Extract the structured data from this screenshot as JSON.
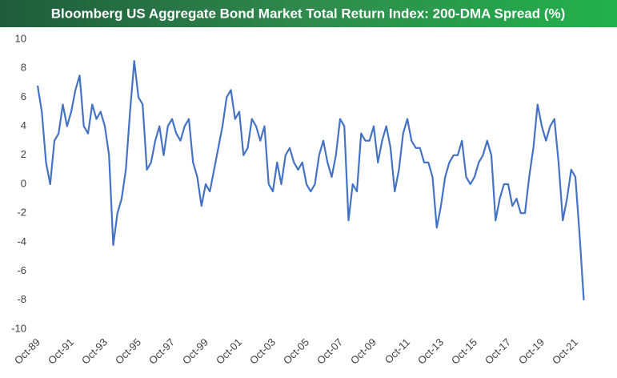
{
  "chart_data": {
    "type": "line",
    "title": "Bloomberg US Aggregate Bond Market Total Return Index: 200-DMA Spread (%)",
    "categories": [
      "Oct-89",
      null,
      null,
      null,
      null,
      null,
      null,
      null,
      "Oct-91",
      null,
      null,
      null,
      null,
      null,
      null,
      null,
      "Oct-93",
      null,
      null,
      null,
      null,
      null,
      null,
      null,
      "Oct-95",
      null,
      null,
      null,
      null,
      null,
      null,
      null,
      "Oct-97",
      null,
      null,
      null,
      null,
      null,
      null,
      null,
      "Oct-99",
      null,
      null,
      null,
      null,
      null,
      null,
      null,
      "Oct-01",
      null,
      null,
      null,
      null,
      null,
      null,
      null,
      "Oct-03",
      null,
      null,
      null,
      null,
      null,
      null,
      null,
      "Oct-05",
      null,
      null,
      null,
      null,
      null,
      null,
      null,
      "Oct-07",
      null,
      null,
      null,
      null,
      null,
      null,
      null,
      "Oct-09",
      null,
      null,
      null,
      null,
      null,
      null,
      null,
      "Oct-11",
      null,
      null,
      null,
      null,
      null,
      null,
      null,
      "Oct-13",
      null,
      null,
      null,
      null,
      null,
      null,
      null,
      "Oct-15",
      null,
      null,
      null,
      null,
      null,
      null,
      null,
      "Oct-17",
      null,
      null,
      null,
      null,
      null,
      null,
      null,
      "Oct-19",
      null,
      null,
      null,
      null,
      null,
      null,
      null,
      "Oct-21",
      null,
      null
    ],
    "series": [
      {
        "name": "200-DMA Spread",
        "color": "#4472c4",
        "values": [
          6.8,
          5,
          1.5,
          0,
          3,
          3.5,
          5.5,
          4,
          5,
          6.5,
          7.5,
          4,
          3.5,
          5.5,
          4.5,
          5,
          4,
          2,
          -4.2,
          -2,
          -1,
          1,
          5,
          8.5,
          6,
          5.5,
          1,
          1.5,
          3,
          4,
          2,
          4,
          4.5,
          3.5,
          3,
          4,
          4.5,
          1.5,
          0.5,
          -1.5,
          0,
          -0.5,
          1,
          2.5,
          4,
          6,
          6.5,
          4.5,
          5,
          2,
          2.5,
          4.5,
          4,
          3,
          4,
          0,
          -0.5,
          1.5,
          0,
          2,
          2.5,
          1.5,
          1,
          1.5,
          0,
          -0.5,
          0,
          2,
          3,
          1.5,
          0.5,
          2,
          4.5,
          4,
          -2.5,
          0,
          -0.5,
          3.5,
          3,
          3,
          4,
          1.5,
          3,
          4,
          2.5,
          -0.5,
          1,
          3.5,
          4.5,
          3,
          2.5,
          2.5,
          1.5,
          1.5,
          0.5,
          -3,
          -1.5,
          0.5,
          1.5,
          2,
          2,
          3,
          0.5,
          0,
          0.5,
          1.5,
          2,
          3,
          2,
          -2.5,
          -1,
          0,
          0,
          -1.5,
          -1,
          -2,
          -2,
          0.5,
          2.5,
          5.5,
          4,
          3,
          4,
          4.5,
          1.5,
          -2.5,
          -1,
          1,
          0.5,
          -3.5,
          -8
        ]
      }
    ],
    "ylim": [
      -10,
      10
    ],
    "yticks": [
      -10,
      -8,
      -6,
      -4,
      -2,
      0,
      2,
      4,
      6,
      8,
      10
    ],
    "grid": false
  }
}
